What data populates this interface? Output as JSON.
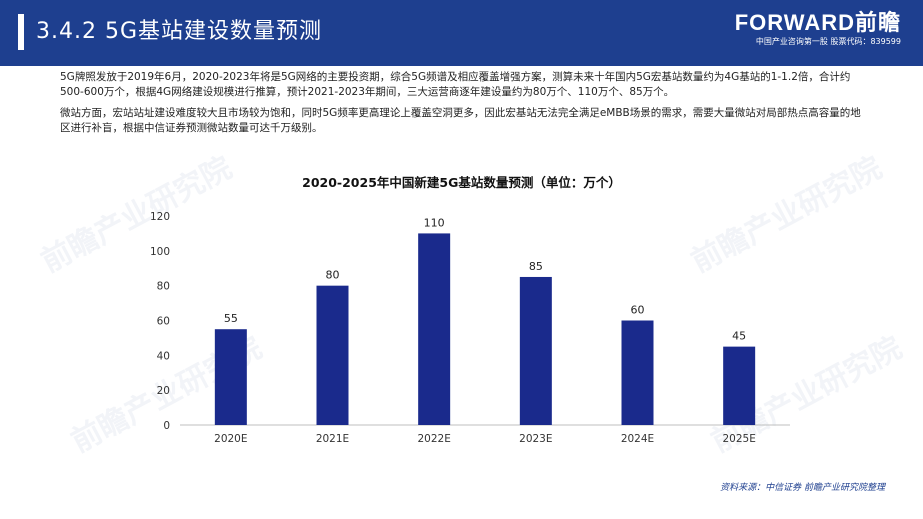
{
  "header": {
    "title": "3.4.2 5G基站建设数量预测",
    "brand": "FORWARD前瞻",
    "tagline": "中国产业咨询第一股  股票代码：839599"
  },
  "paragraphs": [
    "5G牌照发放于2019年6月，2020-2023年将是5G网络的主要投资期，综合5G频谱及相应覆盖增强方案，测算未来十年国内5G宏基站数量约为4G基站的1-1.2倍，合计约500-600万个，根据4G网络建设规模进行推算，预计2021-2023年期间，三大运营商逐年建设量约为80万个、110万个、85万个。",
    "微站方面，宏站站址建设难度较大且市场较为饱和，同时5G频率更高理论上覆盖空洞更多，因此宏基站无法完全满足eMBB场景的需求，需要大量微站对局部热点高容量的地区进行补盲，根据中信证券预测微站数量可达千万级别。"
  ],
  "watermark_text": "前瞻产业研究院",
  "chart_data": {
    "type": "bar",
    "title": "2020-2025年中国新建5G基站数量预测（单位：万个）",
    "categories": [
      "2020E",
      "2021E",
      "2022E",
      "2023E",
      "2024E",
      "2025E"
    ],
    "values": [
      55,
      80,
      110,
      85,
      60,
      45
    ],
    "yticks": [
      0,
      20,
      40,
      60,
      80,
      100,
      120
    ],
    "ylim": [
      0,
      120
    ],
    "grid": false,
    "bar_color": "#1a2a8c",
    "data_labels": true
  },
  "source": "资料来源：中信证券 前瞻产业研究院整理"
}
